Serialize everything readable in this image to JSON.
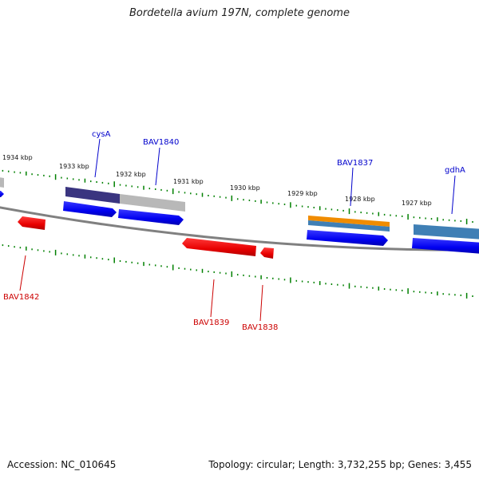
{
  "title": "Bordetella avium 197N, complete genome",
  "footer": {
    "accession": "Accession: NC_010645",
    "topology": "Topology: circular; Length: 3,732,255 bp; Genes: 3,455"
  },
  "scale": {
    "unit": "kbp",
    "ticks": [
      {
        "label": "1934 kbp"
      },
      {
        "label": "1933 kbp"
      },
      {
        "label": "1932 kbp"
      },
      {
        "label": "1931 kbp"
      },
      {
        "label": "1930 kbp"
      },
      {
        "label": "1929 kbp"
      },
      {
        "label": "1928 kbp"
      },
      {
        "label": "1927 kbp"
      }
    ]
  },
  "features": {
    "forward": [
      {
        "name": "",
        "color": "#b8b8b8"
      },
      {
        "name": "cysA",
        "color": "#3a3580"
      },
      {
        "name": "BAV1840",
        "color": "#b8b8b8"
      },
      {
        "name": "BAV1837",
        "color": "#f08c00"
      },
      {
        "name": "gdhA",
        "color": "#3f7fb5"
      }
    ],
    "reverse": [
      {
        "name": "BAV1842",
        "color": "#e80000"
      },
      {
        "name": "BAV1839",
        "color": "#e80000"
      },
      {
        "name": "BAV1838",
        "color": "#e80000"
      }
    ]
  },
  "colors": {
    "forward_label": "#0000cc",
    "reverse_label": "#cc0000",
    "cds_forward": "#0000ff",
    "backbone": "#808080",
    "tick": "#008000"
  }
}
